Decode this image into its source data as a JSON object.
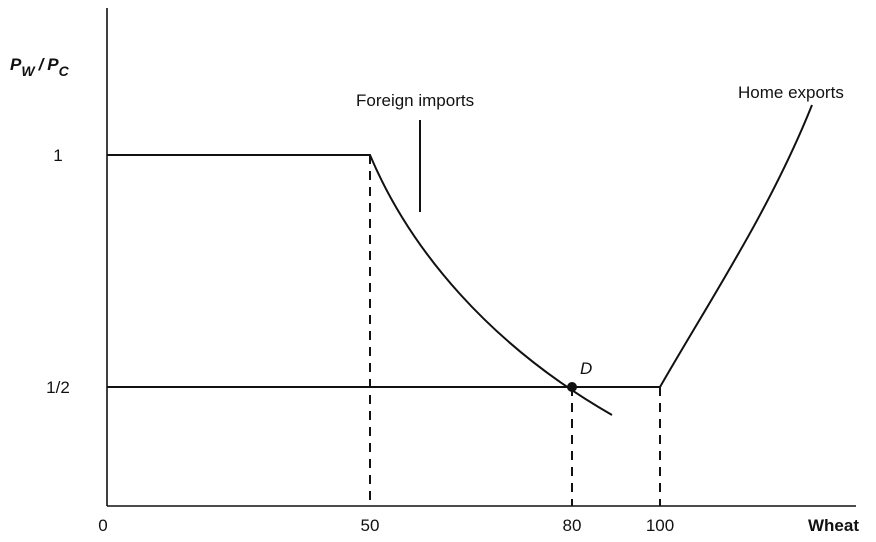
{
  "axes": {
    "y_label": {
      "p1": "P",
      "s1": "W",
      "slash": "/",
      "p2": "P",
      "s2": "C"
    },
    "x_label": "Wheat",
    "x_ticks": [
      "0",
      "50",
      "80",
      "100"
    ],
    "y_ticks": [
      "1",
      "1/2"
    ]
  },
  "curves": {
    "foreign": "Foreign imports",
    "home": "Home exports"
  },
  "point": "D"
}
